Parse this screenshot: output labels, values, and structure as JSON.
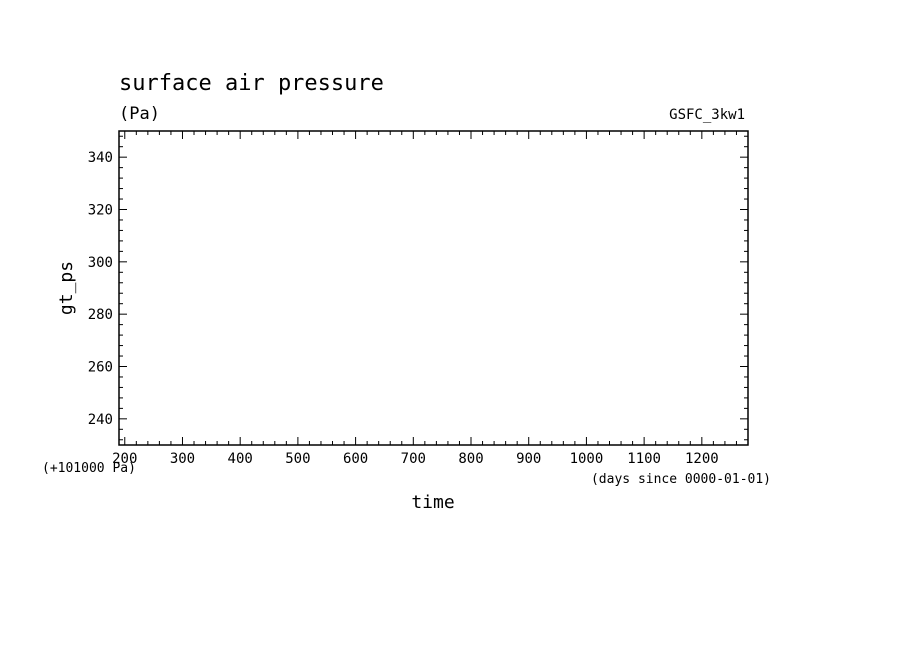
{
  "chart_data": {
    "type": "line",
    "title": "surface air pressure",
    "units": "(Pa)",
    "dataset_label": "GSFC_3kw1",
    "xlabel": "time",
    "x_unit_note": "(days since 0000-01-01)",
    "ylabel": "gt_ps",
    "y_offset_note": "(+101000 Pa)",
    "xlim": [
      190,
      1280
    ],
    "ylim": [
      230,
      350
    ],
    "x_ticks": [
      200,
      300,
      400,
      500,
      600,
      700,
      800,
      900,
      1000,
      1100,
      1200
    ],
    "y_ticks": [
      240,
      260,
      280,
      300,
      320,
      340
    ],
    "x_minor_step": 20,
    "y_minor_step": 4,
    "series": [],
    "grid": false
  }
}
